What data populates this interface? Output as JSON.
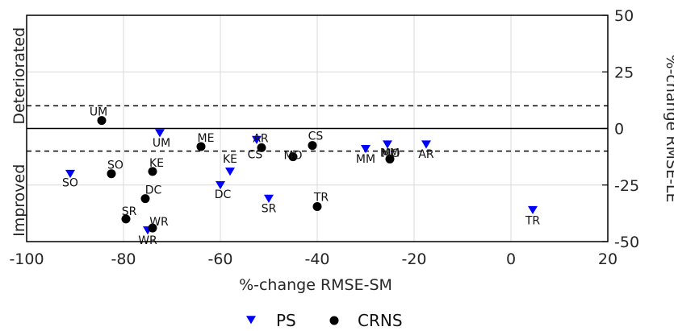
{
  "chart_data": {
    "type": "scatter",
    "xlabel": "%-change RMSE-SM",
    "ylabel_right": "%-change RMSE-LE",
    "ylabel_left_top": "Deteriorated",
    "ylabel_left_bottom": "Improved",
    "xlim": [
      -100,
      20
    ],
    "ylim": [
      -50,
      50
    ],
    "x_ticks": [
      "-100",
      "-80",
      "-60",
      "-40",
      "-20",
      "0",
      "20"
    ],
    "y_ticks": [
      "50",
      "25",
      "0",
      "-25",
      "-50"
    ],
    "grid": true,
    "reference_lines": {
      "solid_y": 0,
      "dashed_y": [
        10,
        -10
      ]
    },
    "legend": {
      "placement": "bottom-center"
    },
    "series": [
      {
        "name": "PS",
        "marker": "down-triangle",
        "color": "#0000ff",
        "points": [
          {
            "label": "SO",
            "x": -91,
            "y": -20
          },
          {
            "label": "UM",
            "x": -72.5,
            "y": -2
          },
          {
            "label": "KE",
            "x": -58,
            "y": -19
          },
          {
            "label": "DC",
            "x": -60,
            "y": -25
          },
          {
            "label": "AR",
            "x": -52.5,
            "y": -5
          },
          {
            "label": "SR",
            "x": -50,
            "y": -31
          },
          {
            "label": "WR",
            "x": -75,
            "y": -45
          },
          {
            "label": "MM",
            "x": -30,
            "y": -9
          },
          {
            "label": "MO",
            "x": -25.5,
            "y": -7
          },
          {
            "label": "AR",
            "x": -17.5,
            "y": -7
          },
          {
            "label": "TR",
            "x": 4.5,
            "y": -36
          }
        ]
      },
      {
        "name": "CRNS",
        "marker": "circle",
        "color": "#000000",
        "points": [
          {
            "label": "UM",
            "x": -84.5,
            "y": 3.5
          },
          {
            "label": "ME",
            "x": -64,
            "y": -8
          },
          {
            "label": "CS",
            "x": -51.5,
            "y": -8.5
          },
          {
            "label": "MO",
            "x": -45,
            "y": -12.5
          },
          {
            "label": "CS",
            "x": -41,
            "y": -7.5
          },
          {
            "label": "SO",
            "x": -82.5,
            "y": -20
          },
          {
            "label": "KE",
            "x": -74,
            "y": -19
          },
          {
            "label": "DC",
            "x": -75.5,
            "y": -31
          },
          {
            "label": "SR",
            "x": -79.5,
            "y": -40
          },
          {
            "label": "WR",
            "x": -74,
            "y": -44
          },
          {
            "label": "TR",
            "x": -40,
            "y": -34.5
          },
          {
            "label": "MM",
            "x": -25,
            "y": -13.5
          }
        ]
      }
    ]
  }
}
